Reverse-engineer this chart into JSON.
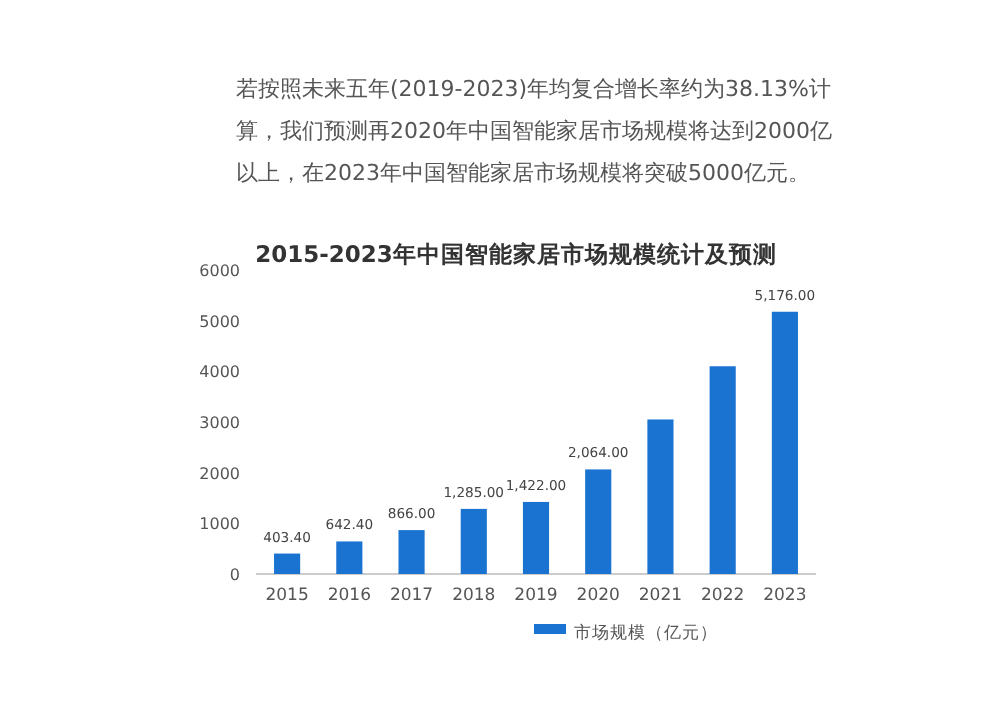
{
  "chart_data": {
    "type": "bar",
    "title": "2015-2023年中国智能家居市场规模统计及预测",
    "annotations": [
      "若按照未来五年(2019-2023)年均复合增长率约为38.13%计算，我们预测再2020年中国智能家居市场规模将达到2000亿以上，在2023年中国智能家居市场规模将突破5000亿元。"
    ],
    "categories": [
      "2015",
      "2016",
      "2017",
      "2018",
      "2019",
      "2020",
      "2021",
      "2022",
      "2023"
    ],
    "series": [
      {
        "name": "市场规模（亿元）",
        "color": "#1a73d1",
        "values": [
          403.4,
          642.4,
          866,
          1285,
          1422,
          2064,
          3050,
          4100,
          5176
        ],
        "value_labels": [
          "403.40",
          "642.40",
          "866.00",
          "1,285.00",
          "1,422.00",
          "2,064.00",
          null,
          null,
          "5,176.00"
        ]
      }
    ],
    "ylim": [
      0,
      6000
    ],
    "yticks": [
      0,
      1000,
      2000,
      3000,
      4000,
      5000,
      6000
    ],
    "grid": false,
    "legend": "bottom"
  }
}
